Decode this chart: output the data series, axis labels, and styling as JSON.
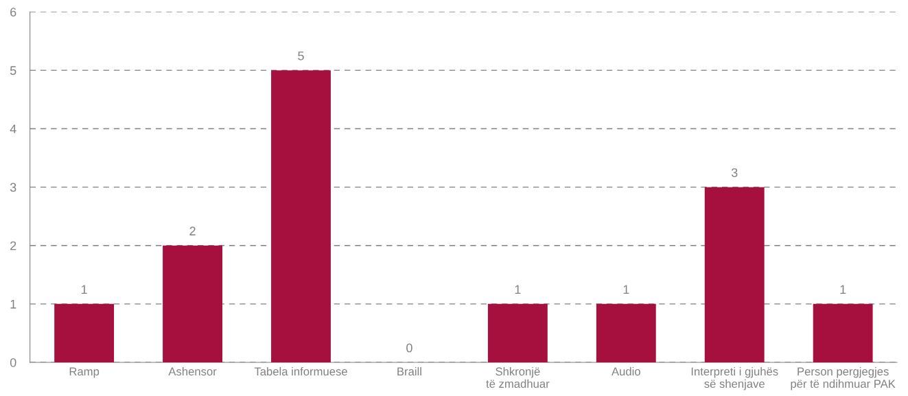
{
  "chart_data": {
    "type": "bar",
    "categories": [
      "Ramp",
      "Ashensor",
      "Tabela informuese",
      "Braill",
      "Shkronjë\ntë zmadhuar",
      "Audio",
      "Interpreti i gjuhës\nsë shenjave",
      "Person pergjegjes\npër të ndihmuar PAK"
    ],
    "values": [
      1,
      2,
      5,
      0,
      1,
      1,
      3,
      1
    ],
    "color": "#a5103e",
    "ylim": [
      0,
      6
    ],
    "yticks": [
      0,
      1,
      2,
      3,
      4,
      5,
      6
    ],
    "grid": "y",
    "line_style": "dashed",
    "data_labels": true
  }
}
